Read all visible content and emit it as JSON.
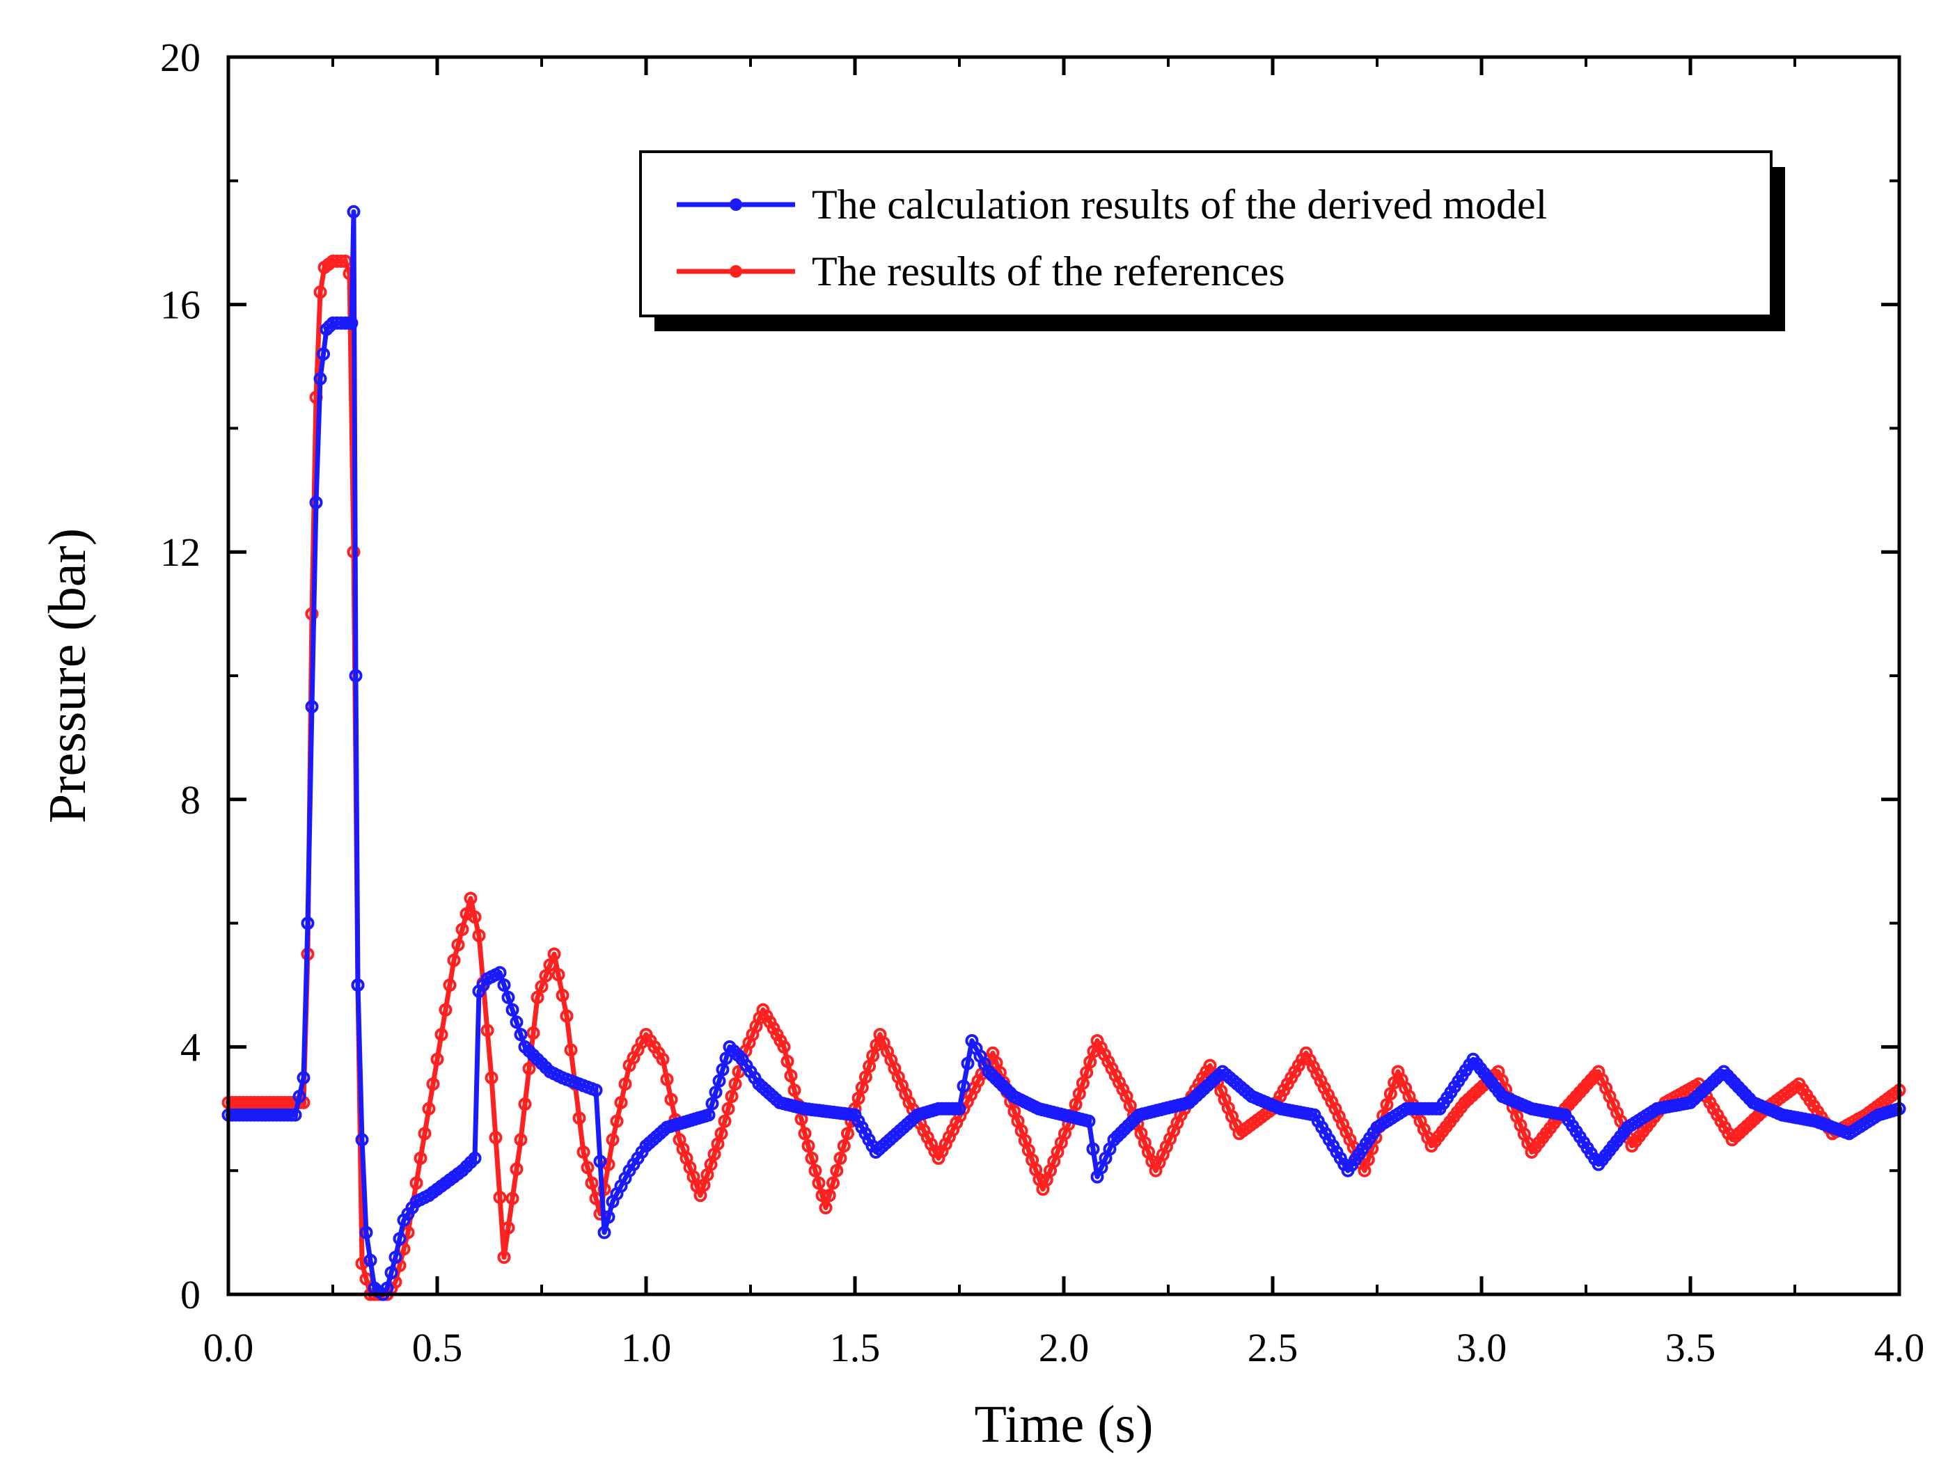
{
  "chart_data": {
    "type": "line",
    "title": "",
    "xlabel": "Time  (s)",
    "ylabel": "Pressure  (bar)",
    "xlim": [
      0,
      4
    ],
    "ylim": [
      0,
      20
    ],
    "x_ticks": [
      0,
      0.5,
      1,
      1.5,
      2,
      2.5,
      3,
      3.5,
      4
    ],
    "x_tick_labels": [
      "0.0",
      "0.5",
      "1.0",
      "1.5",
      "2.0",
      "2.5",
      "3.0",
      "3.5",
      "4.0"
    ],
    "y_ticks": [
      0,
      4,
      8,
      12,
      16,
      20
    ],
    "y_tick_labels": [
      "0",
      "4",
      "8",
      "12",
      "16",
      "20"
    ],
    "legend_position": "top-right",
    "series": [
      {
        "name": "The calculation results of the derived model",
        "color": "#1a1aff",
        "marker": "circle",
        "x": [
          0,
          0.16,
          0.18,
          0.19,
          0.2,
          0.21,
          0.22,
          0.235,
          0.25,
          0.28,
          0.295,
          0.3,
          0.305,
          0.31,
          0.32,
          0.33,
          0.35,
          0.37,
          0.38,
          0.4,
          0.42,
          0.45,
          0.48,
          0.52,
          0.56,
          0.59,
          0.6,
          0.62,
          0.65,
          0.68,
          0.71,
          0.74,
          0.77,
          0.8,
          0.84,
          0.88,
          0.9,
          0.92,
          0.96,
          1.0,
          1.05,
          1.1,
          1.15,
          1.2,
          1.23,
          1.27,
          1.32,
          1.38,
          1.44,
          1.5,
          1.55,
          1.6,
          1.65,
          1.7,
          1.75,
          1.78,
          1.82,
          1.88,
          1.94,
          2.0,
          2.06,
          2.08,
          2.12,
          2.18,
          2.24,
          2.3,
          2.38,
          2.45,
          2.52,
          2.6,
          2.68,
          2.75,
          2.82,
          2.9,
          2.98,
          3.05,
          3.12,
          3.2,
          3.28,
          3.35,
          3.42,
          3.5,
          3.58,
          3.65,
          3.72,
          3.8,
          3.88,
          3.95,
          4.0
        ],
        "y": [
          2.9,
          2.9,
          3.5,
          6.0,
          9.5,
          12.8,
          14.8,
          15.6,
          15.7,
          15.7,
          15.7,
          17.5,
          10.0,
          5.0,
          2.5,
          1.0,
          0.1,
          0.0,
          0.1,
          0.6,
          1.2,
          1.5,
          1.6,
          1.8,
          2.0,
          2.2,
          4.9,
          5.1,
          5.2,
          4.6,
          4.0,
          3.8,
          3.6,
          3.5,
          3.4,
          3.3,
          1.0,
          1.5,
          2.0,
          2.4,
          2.7,
          2.8,
          2.9,
          4.0,
          3.8,
          3.4,
          3.1,
          3.0,
          2.95,
          2.9,
          2.3,
          2.6,
          2.9,
          3.0,
          3.0,
          4.1,
          3.6,
          3.2,
          3.0,
          2.9,
          2.8,
          1.9,
          2.5,
          2.9,
          3.0,
          3.1,
          3.6,
          3.2,
          3.0,
          2.9,
          2.0,
          2.7,
          3.0,
          3.0,
          3.8,
          3.2,
          3.0,
          2.9,
          2.1,
          2.7,
          3.0,
          3.1,
          3.6,
          3.1,
          2.9,
          2.8,
          2.6,
          2.9,
          3.0
        ]
      },
      {
        "name": "The results of the references",
        "color": "#ff2020",
        "marker": "circle",
        "x": [
          0,
          0.18,
          0.19,
          0.2,
          0.21,
          0.22,
          0.23,
          0.25,
          0.27,
          0.28,
          0.29,
          0.3,
          0.31,
          0.32,
          0.34,
          0.36,
          0.38,
          0.4,
          0.43,
          0.46,
          0.5,
          0.54,
          0.58,
          0.6,
          0.63,
          0.66,
          0.7,
          0.74,
          0.78,
          0.81,
          0.85,
          0.89,
          0.92,
          0.96,
          1.0,
          1.04,
          1.08,
          1.13,
          1.18,
          1.23,
          1.28,
          1.33,
          1.38,
          1.43,
          1.5,
          1.56,
          1.63,
          1.7,
          1.76,
          1.83,
          1.89,
          1.95,
          2.02,
          2.08,
          2.15,
          2.22,
          2.28,
          2.35,
          2.42,
          2.5,
          2.58,
          2.65,
          2.72,
          2.8,
          2.88,
          2.96,
          3.04,
          3.12,
          3.2,
          3.28,
          3.36,
          3.44,
          3.52,
          3.6,
          3.68,
          3.76,
          3.84,
          3.92,
          4.0
        ],
        "y": [
          3.1,
          3.1,
          5.5,
          11.0,
          14.5,
          16.2,
          16.6,
          16.7,
          16.7,
          16.7,
          16.5,
          12.0,
          5.0,
          0.5,
          0.0,
          0.0,
          0.0,
          0.2,
          1.0,
          2.2,
          3.8,
          5.4,
          6.4,
          5.8,
          3.5,
          0.6,
          2.5,
          4.8,
          5.5,
          4.5,
          2.3,
          1.3,
          2.5,
          3.7,
          4.2,
          3.8,
          2.5,
          1.6,
          2.6,
          3.8,
          4.6,
          4.0,
          2.6,
          1.4,
          3.0,
          4.2,
          3.1,
          2.2,
          3.0,
          3.9,
          2.8,
          1.7,
          2.9,
          4.1,
          3.2,
          2.0,
          2.9,
          3.7,
          2.6,
          3.0,
          3.9,
          3.0,
          2.0,
          3.6,
          2.4,
          3.1,
          3.6,
          2.3,
          3.0,
          3.6,
          2.4,
          3.1,
          3.4,
          2.5,
          3.0,
          3.4,
          2.6,
          2.9,
          3.3
        ]
      }
    ]
  }
}
